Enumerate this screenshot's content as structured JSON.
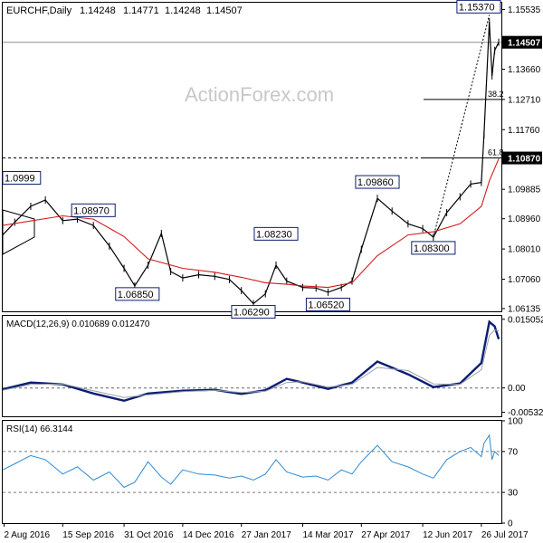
{
  "title_line": {
    "symbol": "EURCHF,Daily",
    "ohlc": [
      "1.14248",
      "1.14771",
      "1.14248",
      "1.14507"
    ]
  },
  "watermark": "ActionForex.com",
  "colors": {
    "price_line": "#000000",
    "ma": "#d11a1a",
    "macd": "#0b1e73",
    "macd_signal": "#9aa0aa",
    "rsi": "#2e8bd6",
    "label_border": "#0b1e73",
    "highlight_bg": "#000000",
    "highlight_text": "#ffffff"
  },
  "chart_data": [
    {
      "type": "line",
      "panel": "price",
      "y_axis_ticks": [
        "1.15535",
        "1.14507",
        "1.13660",
        "1.12710",
        "1.11760",
        "1.10870",
        "1.09885",
        "1.08960",
        "1.08010",
        "1.07060",
        "1.06135"
      ],
      "ylim": [
        1.0605,
        1.1575
      ],
      "x_axis_ticks": [
        "2 Aug 2016",
        "15 Sep 2016",
        "31 Oct 2016",
        "14 Dec 2016",
        "27 Jan 2017",
        "14 Mar 2017",
        "27 Apr 2017",
        "12 Jun 2017",
        "26 Jul 2017"
      ],
      "highlighted_prices": [
        "1.14507",
        "1.10870"
      ],
      "horizontal_lines": [
        1.14507,
        1.1087
      ],
      "annotations": [
        {
          "text": "1.0999",
          "x": "2 Aug 2016",
          "y": 1.0999
        },
        {
          "text": "1.08970",
          "x": "8 Oct 2016",
          "y": 1.0897
        },
        {
          "text": "1.06850",
          "x": "10 Nov 2016",
          "y": 1.0685
        },
        {
          "text": "1.06290",
          "x": "5 Feb 2017",
          "y": 1.0629
        },
        {
          "text": "1.08230",
          "x": "22 Feb 2017",
          "y": 1.0823
        },
        {
          "text": "1.06520",
          "x": "2 Apr 2017",
          "y": 1.0652
        },
        {
          "text": "1.09860",
          "x": "9 May 2017",
          "y": 1.0986
        },
        {
          "text": "1.08300",
          "x": "20 Jun 2017",
          "y": 1.083
        },
        {
          "text": "1.15370",
          "x": "1 Aug 2017",
          "y": 1.1537
        }
      ],
      "fib_levels": [
        {
          "label": "38.2",
          "value": 1.1271
        },
        {
          "label": "61.8",
          "value": 1.1087
        }
      ],
      "series": [
        {
          "x": [
            "1 Aug 2016",
            "10 Aug 2016",
            "22 Aug 2016",
            "2 Sep 2016",
            "15 Sep 2016",
            "26 Sep 2016",
            "8 Oct 2016",
            "20 Oct 2016",
            "31 Oct 2016",
            "8 Nov 2016",
            "18 Nov 2016",
            "28 Nov 2016",
            "5 Dec 2016",
            "14 Dec 2016",
            "26 Dec 2016",
            "7 Jan 2017",
            "18 Jan 2017",
            "27 Jan 2017",
            "5 Feb 2017",
            "14 Feb 2017",
            "22 Feb 2017",
            "2 Mar 2017",
            "14 Mar 2017",
            "24 Mar 2017",
            "2 Apr 2017",
            "12 Apr 2017",
            "20 Apr 2017",
            "27 Apr 2017",
            "9 May 2017",
            "20 May 2017",
            "1 Jun 2017",
            "12 Jun 2017",
            "20 Jun 2017",
            "30 Jun 2017",
            "10 Jul 2017",
            "18 Jul 2017",
            "26 Jul 2017",
            "28 Jul 2017",
            "1 Aug 2017",
            "3 Aug 2017",
            "5 Aug 2017",
            "8 Aug 2017"
          ],
          "values": [
            1.0845,
            1.0885,
            1.0935,
            1.0955,
            1.089,
            1.0895,
            1.0875,
            1.081,
            1.074,
            1.0685,
            1.075,
            1.085,
            1.073,
            1.071,
            1.072,
            1.0715,
            1.0705,
            1.067,
            1.0629,
            1.066,
            1.075,
            1.07,
            1.068,
            1.0678,
            1.0665,
            1.068,
            1.07,
            1.08,
            1.096,
            1.092,
            1.088,
            1.0865,
            1.0838,
            1.0915,
            1.0965,
            1.1005,
            1.101,
            1.116,
            1.1515,
            1.1345,
            1.1425,
            1.14507
          ]
        },
        {
          "name": "MA",
          "x": [
            "1 Aug 2016",
            "15 Sep 2016",
            "8 Oct 2016",
            "31 Oct 2016",
            "18 Nov 2016",
            "14 Dec 2016",
            "7 Jan 2017",
            "27 Jan 2017",
            "14 Feb 2017",
            "2 Mar 2017",
            "14 Mar 2017",
            "2 Apr 2017",
            "20 Apr 2017",
            "9 May 2017",
            "1 Jun 2017",
            "20 Jun 2017",
            "10 Jul 2017",
            "26 Jul 2017",
            "1 Aug 2017",
            "8 Aug 2017"
          ],
          "values": [
            1.0875,
            1.0905,
            1.0895,
            1.084,
            1.077,
            1.074,
            1.0728,
            1.0712,
            1.0695,
            1.069,
            1.0685,
            1.068,
            1.0695,
            1.078,
            1.0845,
            1.0855,
            1.088,
            1.0935,
            1.1015,
            1.1085
          ]
        }
      ]
    },
    {
      "type": "line",
      "panel": "macd",
      "title": "MACD(12,26,9) 0.010689 0.012470",
      "y_axis_ticks": [
        "0.015052",
        "0.00",
        "-0.005321"
      ],
      "ylim": [
        -0.0062,
        0.0158
      ],
      "series": [
        {
          "name": "MACD",
          "x": [
            "1 Aug 2016",
            "22 Aug 2016",
            "15 Sep 2016",
            "8 Oct 2016",
            "31 Oct 2016",
            "18 Nov 2016",
            "14 Dec 2016",
            "7 Jan 2017",
            "27 Jan 2017",
            "14 Feb 2017",
            "2 Mar 2017",
            "14 Mar 2017",
            "2 Apr 2017",
            "20 Apr 2017",
            "9 May 2017",
            "1 Jun 2017",
            "20 Jun 2017",
            "10 Jul 2017",
            "26 Jul 2017",
            "1 Aug 2017",
            "5 Aug 2017",
            "8 Aug 2017"
          ],
          "values": [
            -0.0003,
            0.0012,
            0.0008,
            -0.0012,
            -0.0028,
            -0.0012,
            -0.0006,
            -0.0004,
            -0.0013,
            -0.0005,
            0.002,
            0.0012,
            -0.0002,
            0.0012,
            0.0058,
            0.003,
            0.0002,
            0.001,
            0.0055,
            0.0145,
            0.0135,
            0.0107
          ]
        },
        {
          "name": "Signal",
          "x": [
            "1 Aug 2016",
            "22 Aug 2016",
            "15 Sep 2016",
            "8 Oct 2016",
            "31 Oct 2016",
            "18 Nov 2016",
            "14 Dec 2016",
            "7 Jan 2017",
            "27 Jan 2017",
            "14 Feb 2017",
            "2 Mar 2017",
            "14 Mar 2017",
            "2 Apr 2017",
            "20 Apr 2017",
            "9 May 2017",
            "1 Jun 2017",
            "20 Jun 2017",
            "10 Jul 2017",
            "26 Jul 2017",
            "1 Aug 2017",
            "5 Aug 2017",
            "8 Aug 2017"
          ],
          "values": [
            -0.0005,
            0.0008,
            0.0009,
            -0.0006,
            -0.0021,
            -0.0015,
            -0.0008,
            -0.0005,
            -0.001,
            -0.0007,
            0.0012,
            0.0014,
            0.0002,
            0.0008,
            0.0045,
            0.0038,
            0.0009,
            0.0008,
            0.004,
            0.0115,
            0.0127,
            0.0125
          ]
        }
      ]
    },
    {
      "type": "line",
      "panel": "rsi",
      "title": "RSI(14) 66.3144",
      "y_axis_ticks": [
        "100",
        "70",
        "30",
        "0"
      ],
      "ylim": [
        0,
        100
      ],
      "reference_lines": [
        70,
        30
      ],
      "series": [
        {
          "name": "RSI",
          "x": [
            "1 Aug 2016",
            "10 Aug 2016",
            "22 Aug 2016",
            "2 Sep 2016",
            "15 Sep 2016",
            "26 Sep 2016",
            "8 Oct 2016",
            "20 Oct 2016",
            "31 Oct 2016",
            "8 Nov 2016",
            "18 Nov 2016",
            "28 Nov 2016",
            "5 Dec 2016",
            "14 Dec 2016",
            "26 Dec 2016",
            "7 Jan 2017",
            "18 Jan 2017",
            "27 Jan 2017",
            "5 Feb 2017",
            "14 Feb 2017",
            "22 Feb 2017",
            "2 Mar 2017",
            "14 Mar 2017",
            "24 Mar 2017",
            "2 Apr 2017",
            "12 Apr 2017",
            "20 Apr 2017",
            "27 Apr 2017",
            "9 May 2017",
            "20 May 2017",
            "1 Jun 2017",
            "12 Jun 2017",
            "20 Jun 2017",
            "30 Jun 2017",
            "10 Jul 2017",
            "18 Jul 2017",
            "26 Jul 2017",
            "28 Jul 2017",
            "1 Aug 2017",
            "3 Aug 2017",
            "5 Aug 2017",
            "8 Aug 2017"
          ],
          "values": [
            52,
            58,
            66,
            62,
            48,
            55,
            42,
            50,
            35,
            40,
            60,
            45,
            38,
            52,
            48,
            47,
            44,
            46,
            42,
            48,
            62,
            50,
            45,
            46,
            42,
            52,
            48,
            60,
            76,
            60,
            55,
            48,
            44,
            62,
            70,
            74,
            65,
            78,
            86,
            62,
            70,
            66
          ]
        }
      ]
    }
  ]
}
